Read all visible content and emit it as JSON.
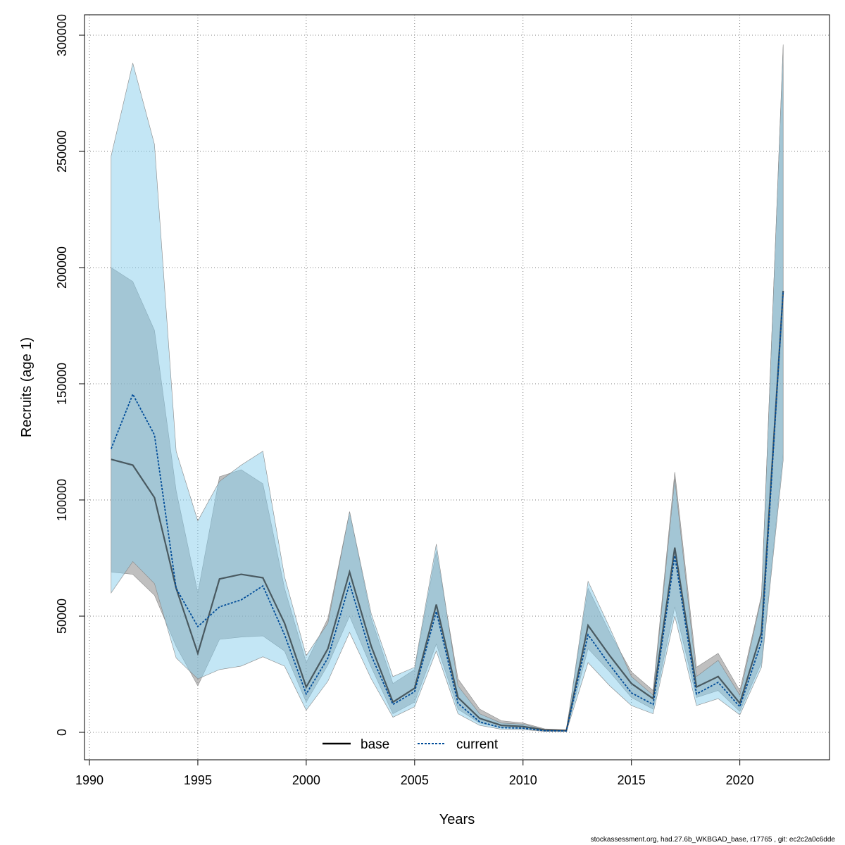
{
  "chart_data": {
    "type": "line",
    "title": "",
    "xlabel": "Years",
    "ylabel": "Recruits (age 1)",
    "xlim": [
      1990,
      2023
    ],
    "ylim": [
      0,
      310000
    ],
    "x_ticks": [
      1990,
      1995,
      2000,
      2005,
      2010,
      2015,
      2020
    ],
    "y_ticks": [
      0,
      50000,
      100000,
      150000,
      200000,
      250000,
      300000
    ],
    "grid": true,
    "legend_position": "bottom",
    "x": [
      1991,
      1992,
      1993,
      1994,
      1995,
      1996,
      1997,
      1998,
      1999,
      2000,
      2001,
      2002,
      2003,
      2004,
      2005,
      2006,
      2007,
      2008,
      2009,
      2010,
      2011,
      2012,
      2013,
      2014,
      2015,
      2016,
      2017,
      2018,
      2019,
      2020,
      2021,
      2022
    ],
    "series": [
      {
        "name": "base",
        "color": "#000000",
        "band_color": "#7f7f7f",
        "line_style": "solid",
        "values": [
          117500,
          115000,
          101000,
          62000,
          34000,
          66000,
          68000,
          66500,
          47000,
          19500,
          36000,
          69000,
          37000,
          13000,
          19000,
          55000,
          15000,
          6000,
          3000,
          2500,
          1000,
          800,
          46000,
          33000,
          21000,
          14500,
          79500,
          19500,
          24000,
          12500,
          43000,
          190000
        ],
        "lower": [
          69000,
          68000,
          59000,
          37000,
          20000,
          40000,
          41000,
          41500,
          35000,
          13000,
          29000,
          50000,
          28000,
          8000,
          13000,
          38000,
          10000,
          4000,
          2000,
          1700,
          500,
          400,
          36000,
          26000,
          15000,
          10000,
          54000,
          15000,
          18000,
          9000,
          30000,
          120000
        ],
        "upper": [
          200000,
          194000,
          173000,
          104000,
          60000,
          110000,
          113000,
          107000,
          62000,
          30000,
          49000,
          95000,
          49000,
          21000,
          27000,
          78000,
          23000,
          10000,
          5000,
          4000,
          1500,
          1000,
          62000,
          43000,
          26000,
          18000,
          112000,
          28000,
          34000,
          18000,
          59000,
          295000
        ]
      },
      {
        "name": "current",
        "color": "#004c99",
        "band_color": "#87ceeb",
        "line_style": "dotted",
        "values": [
          122000,
          145500,
          128000,
          62000,
          45500,
          54000,
          57000,
          63000,
          42000,
          16500,
          32000,
          64000,
          33000,
          12000,
          17500,
          52000,
          12500,
          4500,
          2000,
          1800,
          700,
          600,
          42000,
          29000,
          17000,
          12000,
          76000,
          16500,
          21500,
          11000,
          39000,
          190000
        ],
        "lower": [
          60000,
          73500,
          64000,
          32000,
          23000,
          27000,
          28500,
          32500,
          28500,
          9500,
          22000,
          43000,
          23000,
          6500,
          11000,
          35000,
          8000,
          3000,
          1300,
          1200,
          400,
          300,
          30000,
          20000,
          11500,
          8000,
          50000,
          11500,
          14500,
          7500,
          28000,
          117000
        ],
        "upper": [
          248000,
          288000,
          253000,
          121000,
          91000,
          108000,
          115000,
          121000,
          67000,
          33000,
          47000,
          95000,
          51000,
          24000,
          28000,
          81000,
          20000,
          8000,
          4000,
          3500,
          1200,
          900,
          65000,
          45000,
          24000,
          16000,
          109000,
          24000,
          31000,
          16000,
          58000,
          296000
        ]
      }
    ]
  },
  "footer": "stockassessment.org, had.27.6b_WKBGAD_base, r17765 , git: ec2c2a0c6dde"
}
